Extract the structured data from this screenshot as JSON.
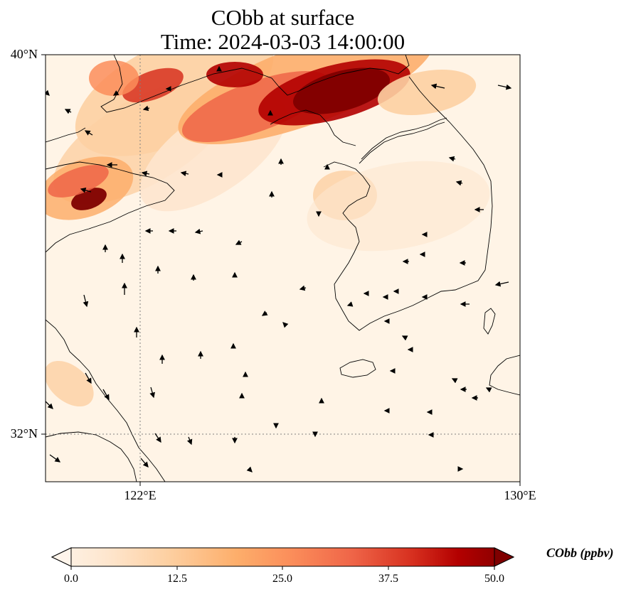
{
  "title": {
    "line1": "CObb at surface",
    "line2": "Time: 2024-03-03 14:00:00"
  },
  "axes": {
    "lat_ticks": [
      "40°N",
      "32°N"
    ],
    "lon_ticks": [
      "122°E",
      "130°E"
    ],
    "extent": {
      "lon_min": 120.0,
      "lon_max": 130.0,
      "lat_min": 31.0,
      "lat_max": 40.0
    },
    "gridlines": true
  },
  "colorbar": {
    "label": "CObb (ppbv)",
    "ticks": [
      "0.0",
      "12.5",
      "25.0",
      "37.5",
      "50.0"
    ],
    "min": 0,
    "max": 50,
    "extend": "both",
    "colormap": [
      "#fff5eb",
      "#fee6ce",
      "#fdd0a2",
      "#fdae6b",
      "#fd8d3c",
      "#f16913",
      "#d94801",
      "#a50f0d",
      "#800000"
    ]
  },
  "map_colors": {
    "coastline": "#000000",
    "gridline": "#808080",
    "vector": "#000000"
  }
}
